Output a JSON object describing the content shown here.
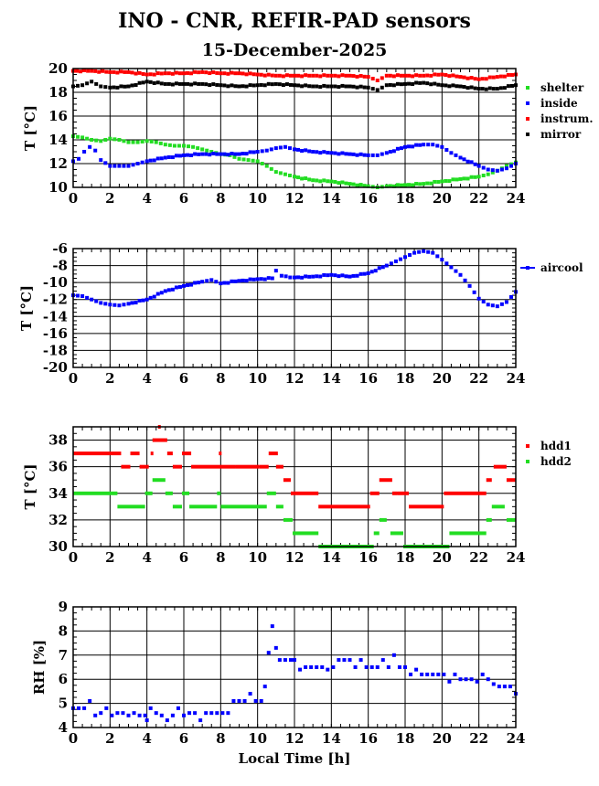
{
  "page": {
    "title": "INO - CNR, REFIR-PAD sensors",
    "date": "15-December-2025",
    "x_axis_label": "Local Time [h]"
  },
  "chart_data": [
    {
      "id": "temps",
      "type": "scatter",
      "ylabel": "T [°C]",
      "xlim": [
        0,
        24
      ],
      "ylim": [
        10,
        20
      ],
      "xticks": [
        0,
        2,
        4,
        6,
        8,
        10,
        12,
        14,
        16,
        18,
        20,
        22,
        24
      ],
      "yticks": [
        10,
        12,
        14,
        16,
        18,
        20
      ],
      "grid": true,
      "legend": "top-right",
      "series": [
        {
          "name": "shelter",
          "color": "#22dd22",
          "x": [
            0,
            0.5,
            1,
            1.5,
            2,
            2.5,
            3,
            3.5,
            4,
            4.5,
            5,
            5.5,
            6,
            6.5,
            7,
            7.5,
            8,
            8.5,
            9,
            9.5,
            10,
            10.5,
            11,
            11.5,
            12,
            13,
            14,
            15,
            16,
            16.5,
            17,
            18,
            19,
            20,
            21,
            22,
            22.5,
            23,
            23.5,
            24
          ],
          "y": [
            14.3,
            14.2,
            14.0,
            13.9,
            14.1,
            14.0,
            13.8,
            13.8,
            13.9,
            13.8,
            13.6,
            13.5,
            13.5,
            13.4,
            13.2,
            13.0,
            12.8,
            12.7,
            12.4,
            12.3,
            12.2,
            11.8,
            11.3,
            11.1,
            10.9,
            10.6,
            10.5,
            10.3,
            10.1,
            10.0,
            10.1,
            10.2,
            10.3,
            10.5,
            10.7,
            10.9,
            11.1,
            11.4,
            11.8,
            12.1
          ]
        },
        {
          "name": "inside",
          "color": "#0000ff",
          "x": [
            0,
            0.3,
            0.6,
            0.9,
            1.2,
            1.5,
            2,
            2.5,
            3,
            3.5,
            4,
            5,
            6,
            7,
            8,
            9,
            10,
            10.5,
            11,
            11.5,
            12,
            13,
            14,
            15,
            16,
            16.5,
            17,
            18,
            19,
            19.5,
            20,
            20.5,
            21,
            22,
            22.5,
            23,
            23.5,
            24
          ],
          "y": [
            12.2,
            12.4,
            13.0,
            13.4,
            13.1,
            12.3,
            11.8,
            11.8,
            11.8,
            12.0,
            12.2,
            12.5,
            12.7,
            12.8,
            12.8,
            12.8,
            13.0,
            13.1,
            13.3,
            13.4,
            13.2,
            13.0,
            12.9,
            12.8,
            12.7,
            12.7,
            12.9,
            13.4,
            13.6,
            13.6,
            13.4,
            12.9,
            12.5,
            11.8,
            11.5,
            11.4,
            11.6,
            12.0
          ]
        },
        {
          "name": "instrum.",
          "color": "#ff0000",
          "x": [
            0,
            1,
            2,
            3,
            4,
            5,
            6,
            7,
            8,
            9,
            10,
            11,
            12,
            13,
            14,
            15,
            16,
            16.5,
            17,
            18,
            19,
            20,
            21,
            22,
            23,
            24
          ],
          "y": [
            19.8,
            19.8,
            19.7,
            19.7,
            19.5,
            19.6,
            19.6,
            19.7,
            19.6,
            19.6,
            19.5,
            19.4,
            19.4,
            19.4,
            19.4,
            19.4,
            19.3,
            19.0,
            19.4,
            19.4,
            19.4,
            19.5,
            19.3,
            19.1,
            19.3,
            19.5
          ]
        },
        {
          "name": "mirror",
          "color": "#000000",
          "x": [
            0,
            0.5,
            1,
            1.5,
            2,
            3,
            4,
            5,
            6,
            7,
            8,
            9,
            10,
            11,
            12,
            13,
            14,
            15,
            16,
            16.5,
            17,
            18,
            19,
            20,
            21,
            22,
            23,
            24
          ],
          "y": [
            18.5,
            18.6,
            18.9,
            18.5,
            18.4,
            18.5,
            18.9,
            18.7,
            18.7,
            18.7,
            18.6,
            18.5,
            18.6,
            18.7,
            18.6,
            18.5,
            18.5,
            18.5,
            18.4,
            18.2,
            18.6,
            18.7,
            18.8,
            18.6,
            18.5,
            18.3,
            18.3,
            18.6
          ]
        }
      ]
    },
    {
      "id": "aircool",
      "type": "scatter",
      "ylabel": "T [°C]",
      "xlim": [
        0,
        24
      ],
      "ylim": [
        -20,
        -6
      ],
      "xticks": [
        0,
        2,
        4,
        6,
        8,
        10,
        12,
        14,
        16,
        18,
        20,
        22,
        24
      ],
      "yticks": [
        -20,
        -18,
        -16,
        -14,
        -12,
        -10,
        -8,
        -6
      ],
      "grid": true,
      "legend": "top-right",
      "series": [
        {
          "name": "aircool",
          "color": "#0000ff",
          "x": [
            0,
            0.5,
            1,
            1.5,
            2,
            2.5,
            3,
            4,
            5,
            6,
            7,
            7.5,
            8,
            9,
            10,
            10.8,
            11,
            11.3,
            12,
            13,
            14,
            15,
            16,
            17,
            17.5,
            18,
            18.5,
            19,
            19.5,
            20,
            20.5,
            21,
            21.5,
            22,
            22.5,
            23,
            23.5,
            24
          ],
          "y": [
            -11.5,
            -11.6,
            -12.0,
            -12.4,
            -12.6,
            -12.7,
            -12.5,
            -12.0,
            -11.0,
            -10.4,
            -9.9,
            -9.7,
            -10.1,
            -9.8,
            -9.6,
            -9.5,
            -8.6,
            -9.2,
            -9.4,
            -9.3,
            -9.1,
            -9.3,
            -8.9,
            -8.0,
            -7.5,
            -7.0,
            -6.5,
            -6.3,
            -6.5,
            -7.3,
            -8.2,
            -9.1,
            -10.4,
            -11.9,
            -12.6,
            -12.8,
            -12.3,
            -11.1
          ]
        }
      ]
    },
    {
      "id": "hdd",
      "type": "scatter",
      "ylabel": "T [°C]",
      "xlim": [
        0,
        24
      ],
      "ylim": [
        30,
        39
      ],
      "xticks": [
        0,
        2,
        4,
        6,
        8,
        10,
        12,
        14,
        16,
        18,
        20,
        22,
        24
      ],
      "yticks": [
        30,
        32,
        34,
        36,
        38
      ],
      "grid": true,
      "legend": "top-right",
      "series": [
        {
          "name": "hdd1",
          "color": "#ff0000",
          "segments": [
            [
              0,
              2.6,
              37
            ],
            [
              2.6,
              3.1,
              36
            ],
            [
              3.1,
              3.6,
              37
            ],
            [
              3.6,
              4.1,
              36
            ],
            [
              4.2,
              4.3,
              37
            ],
            [
              4.3,
              5.1,
              38
            ],
            [
              4.6,
              4.7,
              39
            ],
            [
              5.1,
              5.4,
              37
            ],
            [
              5.4,
              5.9,
              36
            ],
            [
              5.9,
              6.4,
              37
            ],
            [
              6.4,
              8.8,
              36
            ],
            [
              7.9,
              8.0,
              37
            ],
            [
              8.8,
              10.1,
              36
            ],
            [
              10.1,
              10.6,
              36
            ],
            [
              10.6,
              11.1,
              37
            ],
            [
              11.0,
              11.4,
              36
            ],
            [
              11.4,
              11.8,
              35
            ],
            [
              11.8,
              13.3,
              34
            ],
            [
              13.3,
              16.1,
              33
            ],
            [
              16.1,
              16.6,
              34
            ],
            [
              16.6,
              17.3,
              35
            ],
            [
              17.3,
              17.6,
              34
            ],
            [
              17.6,
              18.2,
              34
            ],
            [
              18.2,
              20.1,
              33
            ],
            [
              20.1,
              22.4,
              34
            ],
            [
              22.4,
              22.7,
              35
            ],
            [
              22.8,
              23.5,
              36
            ],
            [
              23.5,
              24,
              35
            ]
          ]
        },
        {
          "name": "hdd2",
          "color": "#22dd22",
          "segments": [
            [
              0,
              2.4,
              34
            ],
            [
              2.4,
              3.9,
              33
            ],
            [
              3.9,
              4.3,
              34
            ],
            [
              4.3,
              5.0,
              35
            ],
            [
              5.0,
              5.4,
              34
            ],
            [
              5.4,
              5.9,
              33
            ],
            [
              5.9,
              6.3,
              34
            ],
            [
              6.3,
              7.8,
              33
            ],
            [
              7.8,
              8.0,
              34
            ],
            [
              8.0,
              10.5,
              33
            ],
            [
              10.5,
              11.0,
              34
            ],
            [
              11.0,
              11.4,
              33
            ],
            [
              11.4,
              11.9,
              32
            ],
            [
              11.9,
              13.3,
              31
            ],
            [
              13.3,
              16.3,
              30
            ],
            [
              16.3,
              16.6,
              31
            ],
            [
              16.6,
              17.0,
              32
            ],
            [
              17.2,
              17.9,
              31
            ],
            [
              17.9,
              20.4,
              30
            ],
            [
              20.4,
              22.4,
              31
            ],
            [
              22.4,
              22.7,
              32
            ],
            [
              22.7,
              23.4,
              33
            ],
            [
              23.5,
              24,
              32
            ]
          ]
        }
      ]
    },
    {
      "id": "rh",
      "type": "scatter",
      "ylabel": "RH [%]",
      "xlabel": "Local Time [h]",
      "xlim": [
        0,
        24
      ],
      "ylim": [
        4,
        9
      ],
      "xticks": [
        0,
        2,
        4,
        6,
        8,
        10,
        12,
        14,
        16,
        18,
        20,
        22,
        24
      ],
      "yticks": [
        4,
        5,
        6,
        7,
        8,
        9
      ],
      "grid": true,
      "series": [
        {
          "name": "RH",
          "color": "#0000ff",
          "x": [
            0,
            0.3,
            0.6,
            0.9,
            1.2,
            1.5,
            1.8,
            2.1,
            2.4,
            2.7,
            3.0,
            3.3,
            3.6,
            3.9,
            4.0,
            4.2,
            4.5,
            4.8,
            5.1,
            5.4,
            5.7,
            6.0,
            6.3,
            6.6,
            6.9,
            7.2,
            7.5,
            7.8,
            8.1,
            8.4,
            8.7,
            9.0,
            9.3,
            9.6,
            9.9,
            10.2,
            10.4,
            10.6,
            10.8,
            11.0,
            11.2,
            11.5,
            11.8,
            12.0,
            12.3,
            12.6,
            12.9,
            13.2,
            13.5,
            13.8,
            14.1,
            14.4,
            14.7,
            15.0,
            15.3,
            15.6,
            15.9,
            16.2,
            16.5,
            16.8,
            17.1,
            17.4,
            17.7,
            18.0,
            18.3,
            18.6,
            18.9,
            19.2,
            19.5,
            19.8,
            20.1,
            20.4,
            20.7,
            21.0,
            21.3,
            21.6,
            21.9,
            22.2,
            22.5,
            22.8,
            23.1,
            23.4,
            23.7,
            24.0
          ],
          "y": [
            4.8,
            4.8,
            4.8,
            5.1,
            4.5,
            4.6,
            4.8,
            4.5,
            4.6,
            4.6,
            4.5,
            4.6,
            4.5,
            4.5,
            4.3,
            4.8,
            4.6,
            4.5,
            4.3,
            4.5,
            4.8,
            4.5,
            4.6,
            4.6,
            4.3,
            4.6,
            4.6,
            4.6,
            4.6,
            4.6,
            5.1,
            5.1,
            5.1,
            5.4,
            5.1,
            5.1,
            5.7,
            7.1,
            8.2,
            7.3,
            6.8,
            6.8,
            6.8,
            6.8,
            6.4,
            6.5,
            6.5,
            6.5,
            6.5,
            6.4,
            6.5,
            6.8,
            6.8,
            6.8,
            6.5,
            6.8,
            6.5,
            6.5,
            6.5,
            6.8,
            6.5,
            7.0,
            6.5,
            6.5,
            6.2,
            6.4,
            6.2,
            6.2,
            6.2,
            6.2,
            6.2,
            5.9,
            6.2,
            6.0,
            6.0,
            6.0,
            5.9,
            6.2,
            6.0,
            5.8,
            5.7,
            5.7,
            5.7,
            5.4
          ]
        }
      ]
    }
  ]
}
